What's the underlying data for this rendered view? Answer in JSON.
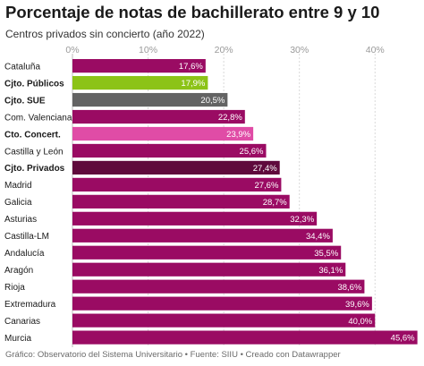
{
  "title": "Porcentaje de notas de bachillerato entre 9 y 10",
  "subtitle": "Centros privados sin concierto (año 2022)",
  "footer": "Gráfico: Observatorio del Sistema Universitario • Fuente: SIIU • Creado con Datawrapper",
  "colors": {
    "default_bar": "#9a0b63",
    "cjto_publicos": "#8cc317",
    "cjto_sue": "#636363",
    "cto_concert": "#e04ca6",
    "cjto_privados": "#5f0a3c",
    "gridline": "#d9d9d9",
    "axis_text": "#9a9a9a"
  },
  "chart_data": {
    "type": "bar",
    "orientation": "horizontal",
    "xlim": [
      0,
      46
    ],
    "x_ticks": [
      0,
      10,
      20,
      30,
      40
    ],
    "x_tick_labels": [
      "0%",
      "10%",
      "20%",
      "30%",
      "40%"
    ],
    "grid": true,
    "categories": [
      "Cataluña",
      "Cjto. Públicos",
      "Cjto. SUE",
      "Com. Valenciana",
      "Cto. Concert.",
      "Castilla y León",
      "Cjto. Privados",
      "Madrid",
      "Galicia",
      "Asturias",
      "Castilla-LM",
      "Andalucía",
      "Aragón",
      "Rioja",
      "Extremadura",
      "Canarias",
      "Murcia"
    ],
    "values": [
      17.6,
      17.9,
      20.5,
      22.8,
      23.9,
      25.6,
      27.4,
      27.6,
      28.7,
      32.3,
      34.4,
      35.5,
      36.1,
      38.6,
      39.6,
      40.0,
      45.6
    ],
    "value_labels": [
      "17,6%",
      "17,9%",
      "20,5%",
      "22,8%",
      "23,9%",
      "25,6%",
      "27,4%",
      "27,6%",
      "28,7%",
      "32,3%",
      "34,4%",
      "35,5%",
      "36,1%",
      "38,6%",
      "39,6%",
      "40,0%",
      "45,6%"
    ],
    "bold_categories": [
      "Cjto. Públicos",
      "Cjto. SUE",
      "Cto. Concert.",
      "Cjto. Privados"
    ],
    "highlight_colors": {
      "Cjto. Públicos": "#8cc317",
      "Cjto. SUE": "#636363",
      "Cto. Concert.": "#e04ca6",
      "Cjto. Privados": "#5f0a3c"
    }
  }
}
